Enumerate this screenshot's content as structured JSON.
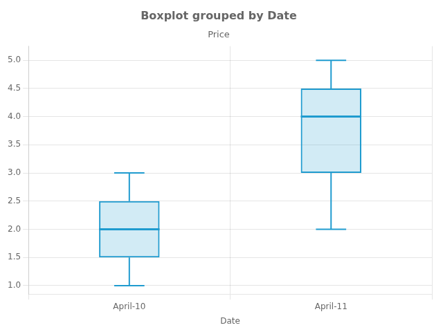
{
  "chart_data": {
    "type": "box",
    "title": "Boxplot grouped by Date",
    "subtitle": "Price",
    "xlabel": "Date",
    "categories": [
      "April-10",
      "April-11"
    ],
    "stats": [
      {
        "whisker_low": 1.0,
        "q1": 1.5,
        "median": 2.0,
        "q3": 2.5,
        "whisker_high": 3.0
      },
      {
        "whisker_low": 2.0,
        "q1": 3.0,
        "median": 4.0,
        "q3": 4.5,
        "whisker_high": 5.0
      }
    ],
    "color": "#1f9bcf",
    "ylim": [
      0.85,
      5.25
    ],
    "yticks": [
      {
        "value": 1.0,
        "label": "1.0"
      },
      1.5,
      {
        "value": 2.0,
        "label": "2.0"
      },
      2.5,
      {
        "value": 3.0,
        "label": "3.0"
      },
      3.5,
      {
        "value": 4.0,
        "label": "4.0"
      },
      4.5,
      {
        "value": 5.0,
        "label": "5.0"
      }
    ],
    "grid": true
  }
}
